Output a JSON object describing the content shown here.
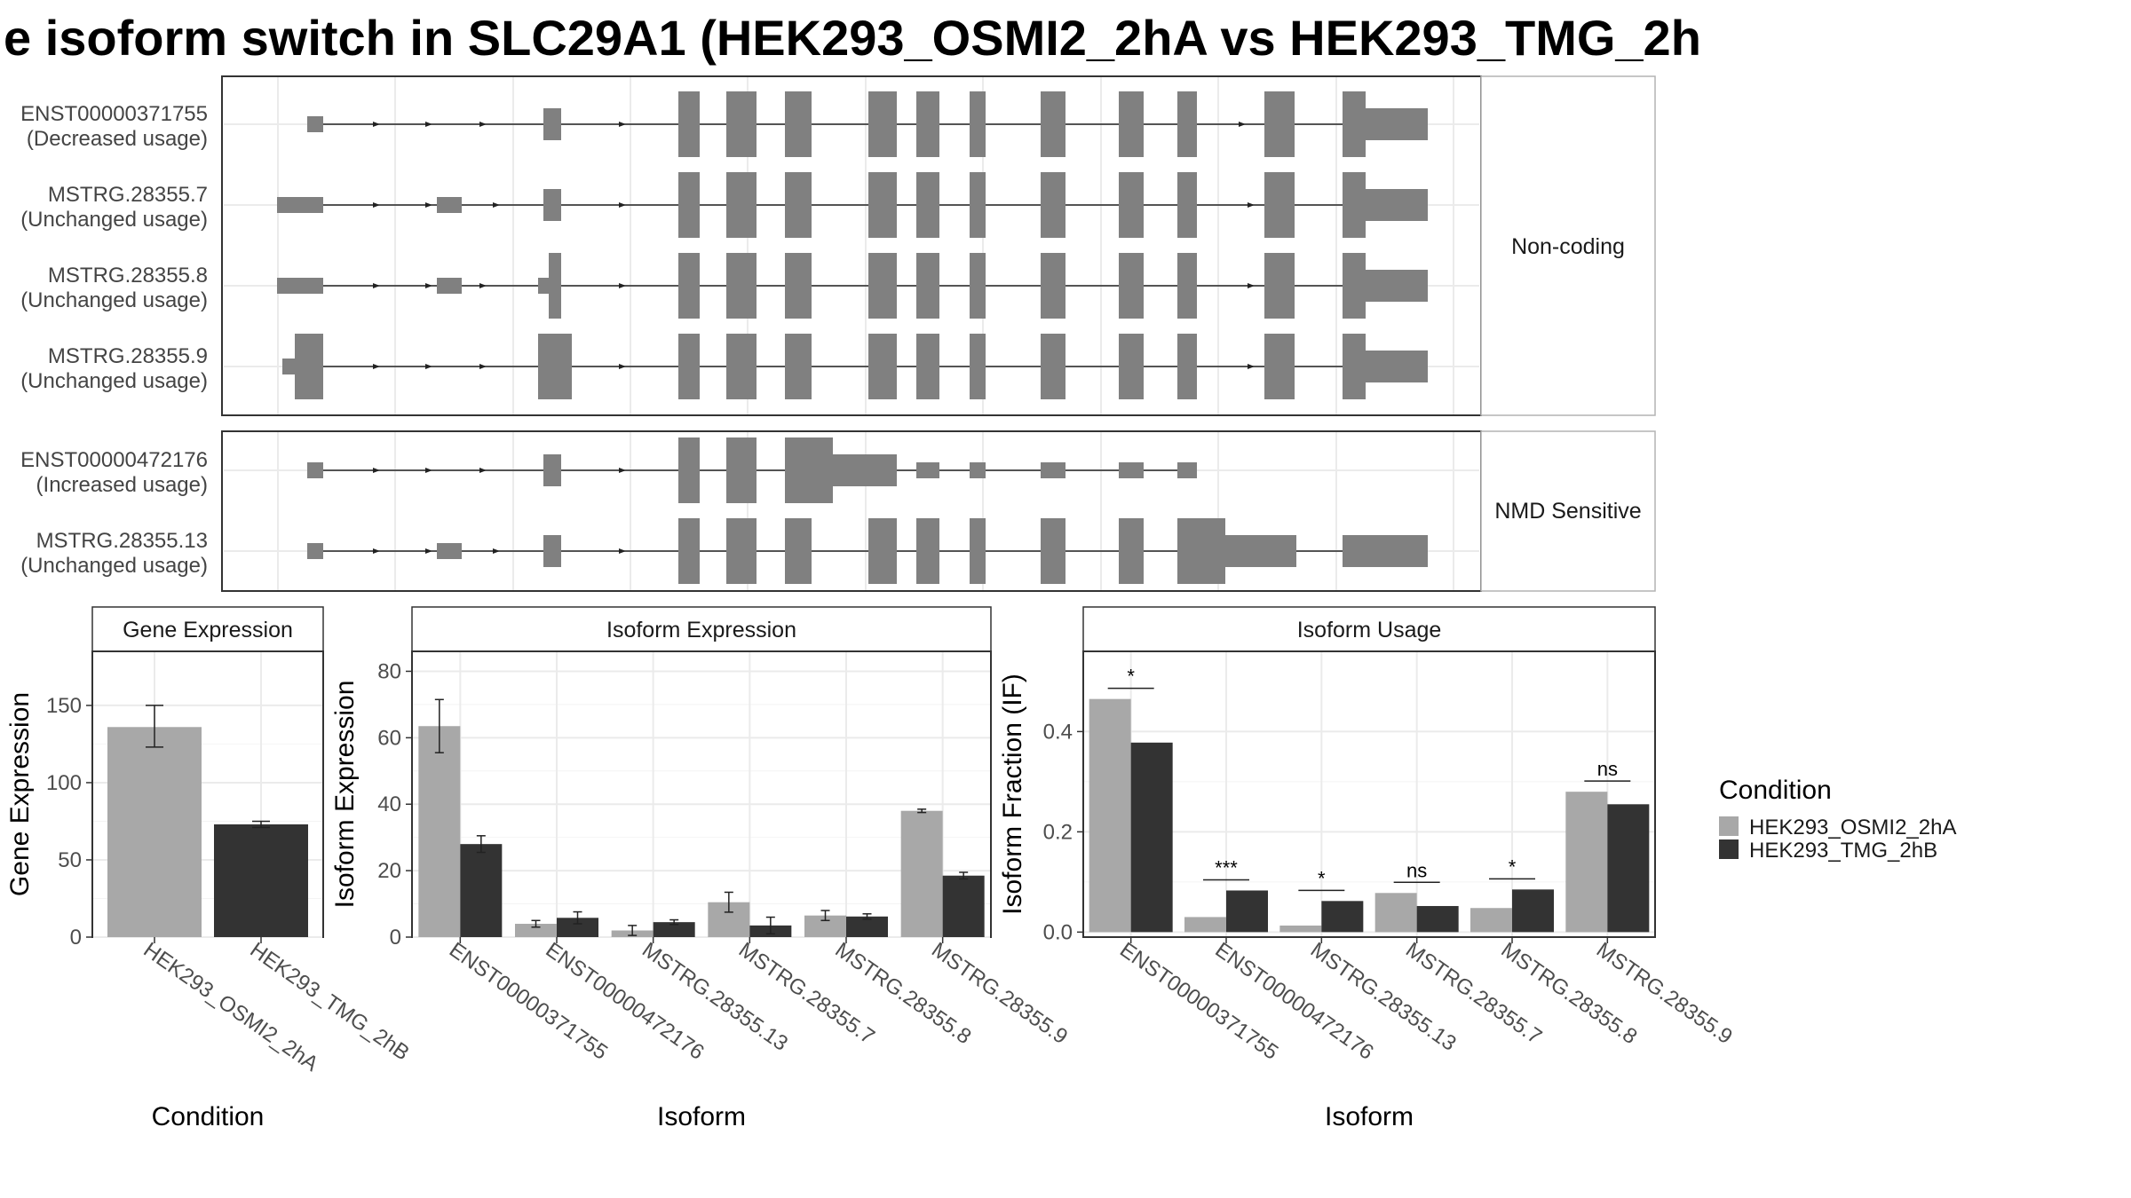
{
  "title": "e isoform switch in SLC29A1 (HEK293_OSMI2_2hA vs HEK293_TMG_2h",
  "colors": {
    "osmi": "#a8a8a8",
    "tmg": "#333333",
    "exon": "#808080",
    "grid": "#ebebeb",
    "panel_border": "#333333"
  },
  "chart_data": [
    {
      "type": "gene-structure",
      "panels": [
        {
          "label": "Non-coding",
          "transcripts": [
            {
              "name": "ENST00000371755",
              "usage": "(Decreased usage)"
            },
            {
              "name": "MSTRG.28355.7",
              "usage": "(Unchanged usage)"
            },
            {
              "name": "MSTRG.28355.8",
              "usage": "(Unchanged usage)"
            },
            {
              "name": "MSTRG.28355.9",
              "usage": "(Unchanged usage)"
            }
          ]
        },
        {
          "label": "NMD Sensitive",
          "transcripts": [
            {
              "name": "ENST00000472176",
              "usage": "(Increased usage)"
            },
            {
              "name": "MSTRG.28355.13",
              "usage": "(Unchanged usage)"
            }
          ]
        }
      ]
    },
    {
      "type": "bar",
      "title": "Gene Expression",
      "xlabel": "Condition",
      "ylabel": "Gene Expression",
      "ylim": [
        0,
        185
      ],
      "yticks": [
        "0",
        "50",
        "100",
        "150"
      ],
      "categories": [
        "HEK293_OSMI2_2hA",
        "HEK293_TMG_2hB"
      ],
      "values": [
        136,
        73
      ],
      "errors": [
        [
          123,
          150
        ],
        [
          71,
          75
        ]
      ]
    },
    {
      "type": "bar",
      "title": "Isoform Expression",
      "xlabel": "Isoform",
      "ylabel": "Isoform Expression",
      "ylim": [
        0,
        86
      ],
      "yticks": [
        "0",
        "20",
        "40",
        "60",
        "80"
      ],
      "categories": [
        "ENST00000371755",
        "ENST00000472176",
        "MSTRG.28355.13",
        "MSTRG.28355.7",
        "MSTRG.28355.8",
        "MSTRG.28355.9"
      ],
      "series": [
        {
          "name": "HEK293_OSMI2_2hA",
          "values": [
            63.5,
            4.0,
            2.0,
            10.5,
            6.5,
            38.0
          ],
          "errors": [
            [
              55.5,
              71.5
            ],
            [
              3.0,
              5.0
            ],
            [
              0.5,
              3.5
            ],
            [
              7.5,
              13.5
            ],
            [
              5.0,
              8.0
            ],
            [
              37.5,
              38.5
            ]
          ]
        },
        {
          "name": "HEK293_TMG_2hB",
          "values": [
            28.0,
            5.8,
            4.5,
            3.5,
            6.2,
            18.5
          ],
          "errors": [
            [
              25.5,
              30.5
            ],
            [
              4.0,
              7.6
            ],
            [
              3.8,
              5.2
            ],
            [
              1.0,
              6.0
            ],
            [
              5.4,
              7.0
            ],
            [
              17.5,
              19.5
            ]
          ]
        }
      ]
    },
    {
      "type": "bar",
      "title": "Isoform Usage",
      "xlabel": "Isoform",
      "ylabel": "Isoform Fraction (IF)",
      "ylim": [
        -0.01,
        0.56
      ],
      "yticks": [
        "0.0",
        "0.2",
        "0.4"
      ],
      "categories": [
        "ENST00000371755",
        "ENST00000472176",
        "MSTRG.28355.13",
        "MSTRG.28355.7",
        "MSTRG.28355.8",
        "MSTRG.28355.9"
      ],
      "series": [
        {
          "name": "HEK293_OSMI2_2hA",
          "values": [
            0.465,
            0.03,
            0.013,
            0.078,
            0.048,
            0.28
          ]
        },
        {
          "name": "HEK293_TMG_2hB",
          "values": [
            0.378,
            0.083,
            0.062,
            0.052,
            0.085,
            0.255
          ]
        }
      ],
      "significance": [
        "*",
        "***",
        "*",
        "ns",
        "*",
        "ns"
      ]
    }
  ],
  "legend": {
    "title": "Condition",
    "items": [
      {
        "label": "HEK293_OSMI2_2hA",
        "color": "#a8a8a8"
      },
      {
        "label": "HEK293_TMG_2hB",
        "color": "#333333"
      }
    ]
  }
}
